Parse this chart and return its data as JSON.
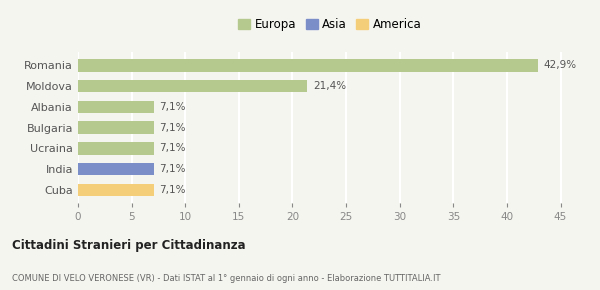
{
  "countries": [
    "Romania",
    "Moldova",
    "Albania",
    "Bulgaria",
    "Ucraina",
    "India",
    "Cuba"
  ],
  "values": [
    42.9,
    21.4,
    7.1,
    7.1,
    7.1,
    7.1,
    7.1
  ],
  "labels": [
    "42,9%",
    "21,4%",
    "7,1%",
    "7,1%",
    "7,1%",
    "7,1%",
    "7,1%"
  ],
  "colors": [
    "#b5c98e",
    "#b5c98e",
    "#b5c98e",
    "#b5c98e",
    "#b5c98e",
    "#7b8ec8",
    "#f5ce7a"
  ],
  "legend": [
    {
      "label": "Europa",
      "color": "#b5c98e"
    },
    {
      "label": "Asia",
      "color": "#7b8ec8"
    },
    {
      "label": "America",
      "color": "#f5ce7a"
    }
  ],
  "xlim": [
    0,
    47
  ],
  "xticks": [
    0,
    5,
    10,
    15,
    20,
    25,
    30,
    35,
    40,
    45
  ],
  "title_bold": "Cittadini Stranieri per Cittadinanza",
  "subtitle": "COMUNE DI VELO VERONESE (VR) - Dati ISTAT al 1° gennaio di ogni anno - Elaborazione TUTTITALIA.IT",
  "background_color": "#f5f5f0",
  "grid_color": "#ffffff",
  "bar_height": 0.6
}
